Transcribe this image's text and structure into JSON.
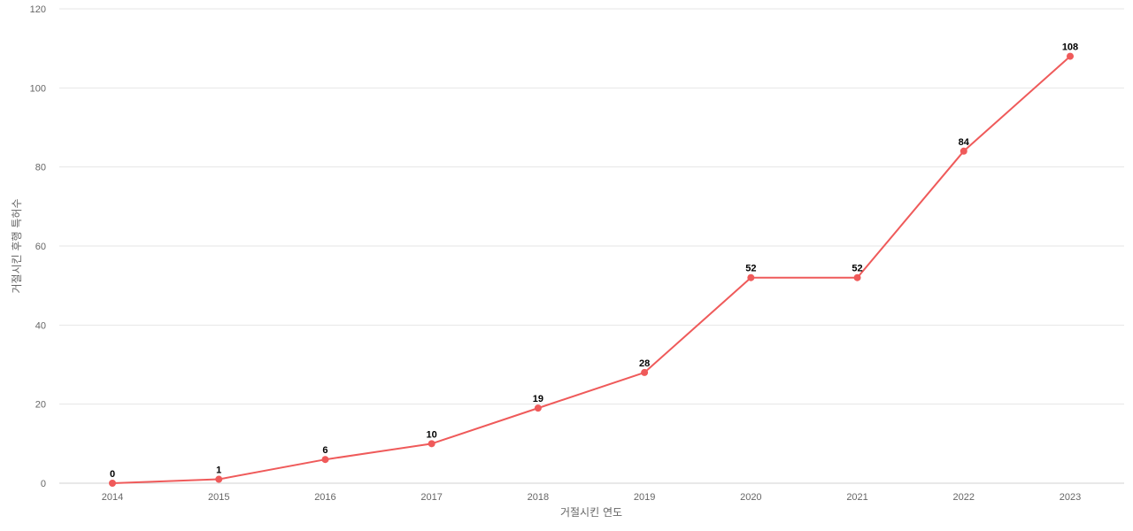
{
  "chart_data": {
    "type": "line",
    "title": "",
    "xlabel": "거절시킨 연도",
    "ylabel": "거절시킨 후행 특허수",
    "categories": [
      "2014",
      "2015",
      "2016",
      "2017",
      "2018",
      "2019",
      "2020",
      "2021",
      "2022",
      "2023"
    ],
    "series": [
      {
        "values": [
          0,
          1,
          6,
          10,
          19,
          28,
          52,
          52,
          84,
          108
        ],
        "color": "#ef5a5a"
      }
    ],
    "ylim": [
      0,
      120
    ],
    "yticks": [
      0,
      20,
      40,
      60,
      80,
      100,
      120
    ],
    "grid": true,
    "legend": "none",
    "data_labels": true
  }
}
